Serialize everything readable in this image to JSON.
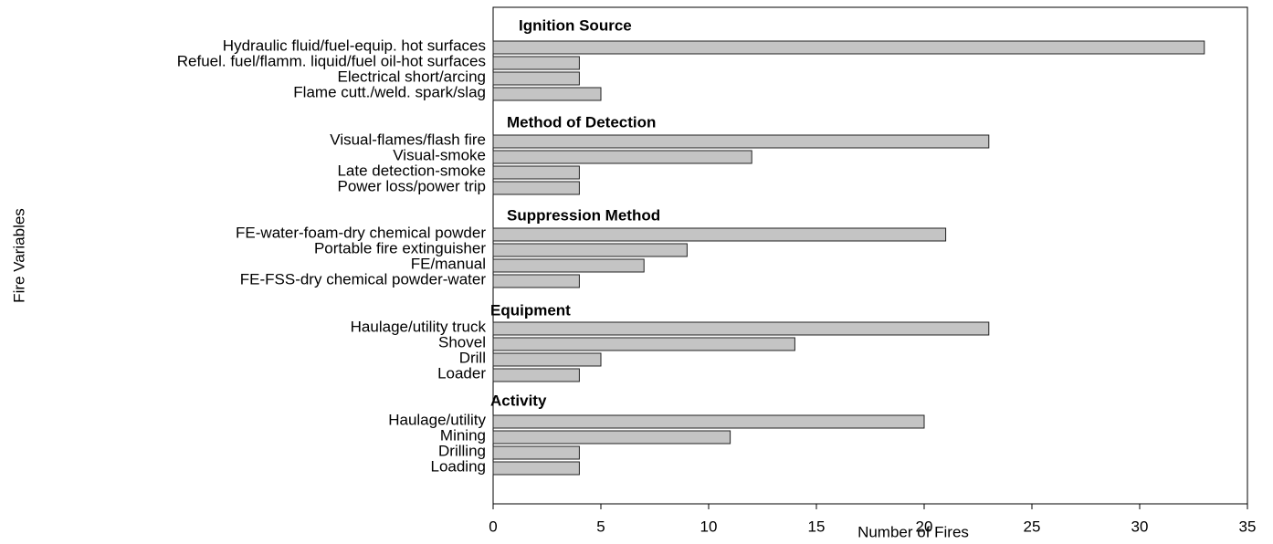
{
  "chart_data": {
    "type": "bar",
    "orientation": "horizontal",
    "xlabel": "Number of Fires",
    "ylabel": "Fire Variables",
    "color": "#c4c4c4",
    "xlim": [
      0,
      35
    ],
    "xticks": [
      0,
      5,
      10,
      15,
      20,
      25,
      30,
      35
    ],
    "grid": false,
    "groups": [
      {
        "name": "Ignition Source",
        "categories": [
          "Hydraulic fluid/fuel-equip. hot surfaces",
          "Refuel. fuel/flamm. liquid/fuel oil-hot surfaces",
          "Electrical short/arcing",
          "Flame cutt./weld. spark/slag"
        ],
        "values": [
          33,
          4,
          4,
          5
        ]
      },
      {
        "name": "Method of Detection",
        "categories": [
          "Visual-flames/flash fire",
          "Visual-smoke",
          "Late detection-smoke",
          "Power loss/power trip"
        ],
        "values": [
          23,
          12,
          4,
          4
        ]
      },
      {
        "name": "Suppression Method",
        "categories": [
          "FE-water-foam-dry chemical powder",
          "Portable fire extinguisher",
          "FE/manual",
          "FE-FSS-dry chemical powder-water"
        ],
        "values": [
          21,
          9,
          7,
          4
        ]
      },
      {
        "name": "Equipment",
        "categories": [
          "Haulage/utility truck",
          "Shovel",
          "Drill",
          "Loader"
        ],
        "values": [
          23,
          14,
          5,
          4
        ]
      },
      {
        "name": "Activity",
        "categories": [
          "Haulage/utility",
          "Mining",
          "Drilling",
          "Loading"
        ],
        "values": [
          20,
          11,
          4,
          4
        ]
      }
    ]
  }
}
